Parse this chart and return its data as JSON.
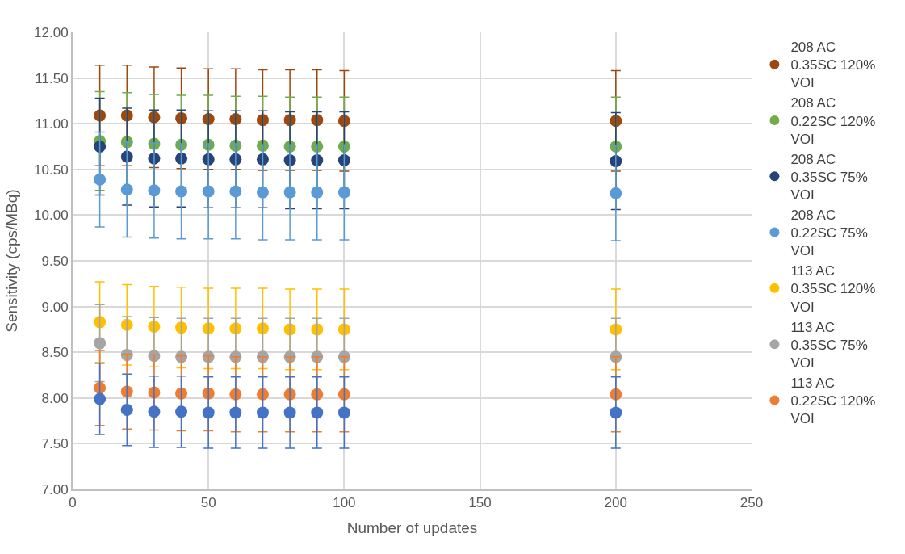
{
  "chart_data": {
    "type": "scatter",
    "xlabel": "Number of updates",
    "ylabel": "Sensitivity (cps/MBq)",
    "x": [
      10,
      20,
      30,
      40,
      50,
      60,
      70,
      80,
      90,
      100,
      200
    ],
    "xlim": [
      0,
      250
    ],
    "xticks": [
      0,
      50,
      100,
      150,
      200,
      250
    ],
    "ylim": [
      7,
      12
    ],
    "yticks": [
      {
        "value": 7,
        "label": "7.00"
      },
      {
        "value": 7.5,
        "label": "7.50"
      },
      {
        "value": 8,
        "label": "8.00"
      },
      {
        "value": 8.5,
        "label": "8.50"
      },
      {
        "value": 9,
        "label": "9.00"
      },
      {
        "value": 9.5,
        "label": "9.50"
      },
      {
        "value": 10,
        "label": "10.00"
      },
      {
        "value": 10.5,
        "label": "10.50"
      },
      {
        "value": 11,
        "label": "11.00"
      },
      {
        "value": 11.5,
        "label": "11.50"
      },
      {
        "value": 12,
        "label": "12.00"
      }
    ],
    "grid": true,
    "legend": "right",
    "marker": "circle",
    "series": [
      {
        "name": "208 AC 0.35SC 120% VOI",
        "color": "#9e480e",
        "values": [
          11.09,
          11.09,
          11.07,
          11.06,
          11.05,
          11.05,
          11.04,
          11.04,
          11.04,
          11.03,
          11.03
        ],
        "errors": [
          0.55,
          0.55,
          0.55,
          0.55,
          0.55,
          0.55,
          0.55,
          0.55,
          0.55,
          0.55,
          0.55
        ]
      },
      {
        "name": "208 AC 0.22SC 120% VOI",
        "color": "#70ad47",
        "values": [
          10.81,
          10.8,
          10.78,
          10.77,
          10.77,
          10.76,
          10.76,
          10.75,
          10.75,
          10.75,
          10.75
        ],
        "errors": [
          0.54,
          0.54,
          0.54,
          0.54,
          0.54,
          0.54,
          0.54,
          0.54,
          0.54,
          0.54,
          0.54
        ]
      },
      {
        "name": "208 AC 0.35SC 75% VOI",
        "color": "#264478",
        "values": [
          10.75,
          10.64,
          10.62,
          10.62,
          10.61,
          10.61,
          10.61,
          10.6,
          10.6,
          10.6,
          10.59
        ],
        "errors": [
          0.53,
          0.53,
          0.53,
          0.53,
          0.53,
          0.53,
          0.53,
          0.53,
          0.53,
          0.53,
          0.53
        ]
      },
      {
        "name": "208 AC 0.22SC 75% VOI",
        "color": "#5b9bd5",
        "values": [
          10.39,
          10.28,
          10.27,
          10.26,
          10.26,
          10.26,
          10.25,
          10.25,
          10.25,
          10.25,
          10.24
        ],
        "errors": [
          0.52,
          0.52,
          0.52,
          0.52,
          0.52,
          0.52,
          0.52,
          0.52,
          0.52,
          0.52,
          0.52
        ]
      },
      {
        "name": "113 AC 0.35SC 120% VOI",
        "color": "#ffc000",
        "values": [
          8.83,
          8.8,
          8.78,
          8.77,
          8.76,
          8.76,
          8.76,
          8.75,
          8.75,
          8.75,
          8.75
        ],
        "errors": [
          0.44,
          0.44,
          0.44,
          0.44,
          0.44,
          0.44,
          0.44,
          0.44,
          0.44,
          0.44,
          0.44
        ]
      },
      {
        "name": "113 AC 0.35SC 75% VOI",
        "color": "#a5a5a5",
        "values": [
          8.6,
          8.47,
          8.46,
          8.45,
          8.45,
          8.45,
          8.45,
          8.45,
          8.45,
          8.45,
          8.45
        ],
        "errors": [
          0.42,
          0.42,
          0.42,
          0.42,
          0.42,
          0.42,
          0.42,
          0.42,
          0.42,
          0.42,
          0.42
        ]
      },
      {
        "name": "113 AC 0.22SC 120% VOI",
        "color": "#ed7d31",
        "values": [
          8.11,
          8.07,
          8.06,
          8.05,
          8.05,
          8.04,
          8.04,
          8.04,
          8.04,
          8.04,
          8.04
        ],
        "errors": [
          0.41,
          0.41,
          0.41,
          0.41,
          0.41,
          0.41,
          0.41,
          0.41,
          0.41,
          0.41,
          0.41
        ]
      },
      {
        "color": "#4472c4",
        "values": [
          7.99,
          7.87,
          7.85,
          7.85,
          7.84,
          7.84,
          7.84,
          7.84,
          7.84,
          7.84,
          7.84
        ],
        "errors": [
          0.39,
          0.39,
          0.39,
          0.39,
          0.39,
          0.39,
          0.39,
          0.39,
          0.39,
          0.39,
          0.39
        ]
      }
    ]
  }
}
